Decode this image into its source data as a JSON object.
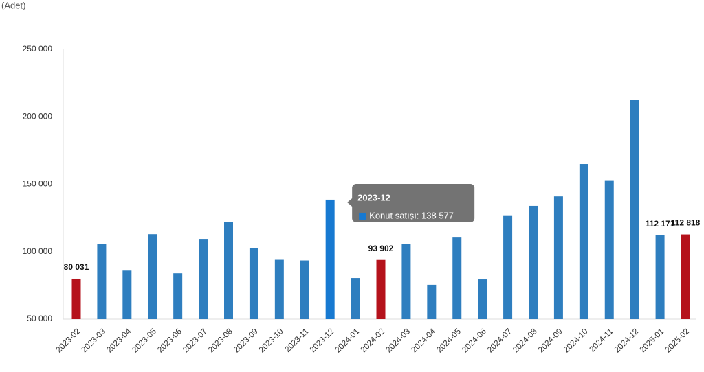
{
  "chart_data": {
    "type": "bar",
    "y_label": "(Adet)",
    "categories": [
      "2023-02",
      "2023-03",
      "2023-04",
      "2023-05",
      "2023-06",
      "2023-07",
      "2023-08",
      "2023-09",
      "2023-10",
      "2023-11",
      "2023-12",
      "2024-01",
      "2024-02",
      "2024-03",
      "2024-04",
      "2024-05",
      "2024-06",
      "2024-07",
      "2024-08",
      "2024-09",
      "2024-10",
      "2024-11",
      "2024-12",
      "2025-01",
      "2025-02"
    ],
    "series": [
      {
        "name": "Konut satışı",
        "values": [
          80031,
          105500,
          86000,
          113000,
          84000,
          109500,
          122000,
          102500,
          94000,
          93500,
          138577,
          80500,
          93902,
          105500,
          75500,
          110500,
          79500,
          127000,
          134000,
          141000,
          165000,
          153000,
          212500,
          112171,
          112818
        ],
        "value_labels": [
          "80 031",
          null,
          null,
          null,
          null,
          null,
          null,
          null,
          null,
          null,
          null,
          null,
          "93 902",
          null,
          null,
          null,
          null,
          null,
          null,
          null,
          null,
          null,
          null,
          "112 171",
          "112 818"
        ],
        "colors": [
          "#b5121b",
          "#2e7ebf",
          "#2e7ebf",
          "#2e7ebf",
          "#2e7ebf",
          "#2e7ebf",
          "#2e7ebf",
          "#2e7ebf",
          "#2e7ebf",
          "#2e7ebf",
          "#1779d1",
          "#2e7ebf",
          "#b5121b",
          "#2e7ebf",
          "#2e7ebf",
          "#2e7ebf",
          "#2e7ebf",
          "#2e7ebf",
          "#2e7ebf",
          "#2e7ebf",
          "#2e7ebf",
          "#2e7ebf",
          "#2e7ebf",
          "#2e7ebf",
          "#b5121b"
        ],
        "color": "#2e7ebf"
      }
    ],
    "ylim": [
      50000,
      250000
    ],
    "yticks": [
      {
        "value": 50000,
        "label": "50 000"
      },
      {
        "value": 100000,
        "label": "100 000"
      },
      {
        "value": 150000,
        "label": "150 000"
      },
      {
        "value": 200000,
        "label": "200 000"
      },
      {
        "value": 250000,
        "label": "250 000"
      }
    ],
    "grid": false,
    "tooltip": {
      "category_index": 10,
      "title": "2023-12",
      "text": "Konut satışı: 138 577"
    }
  }
}
